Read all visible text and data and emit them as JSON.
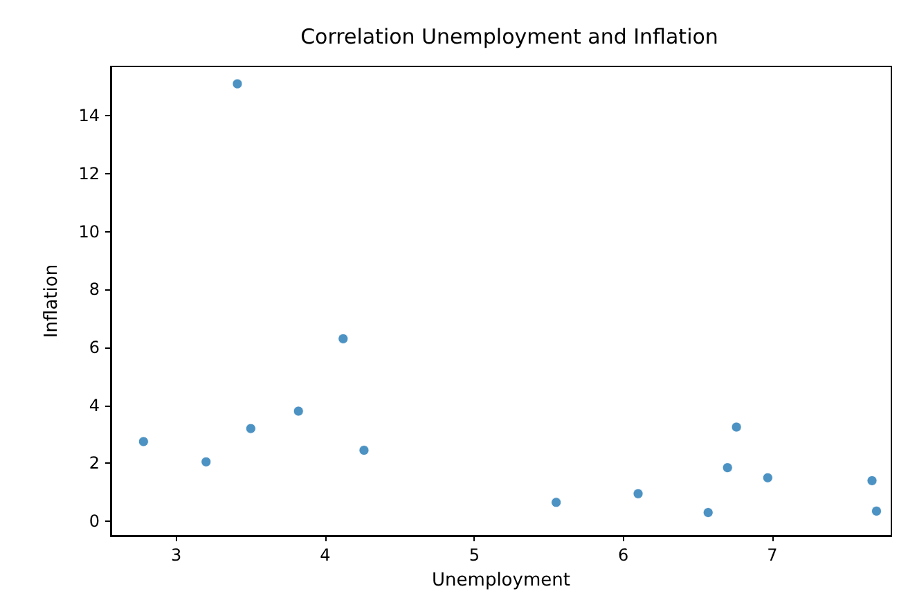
{
  "chart_data": {
    "type": "scatter",
    "title": "Correlation Unemployment and Inflation",
    "xlabel": "Unemployment",
    "ylabel": "Inflation",
    "x": [
      2.78,
      3.2,
      3.41,
      3.5,
      3.82,
      4.12,
      4.26,
      5.55,
      6.1,
      6.57,
      6.7,
      6.76,
      6.97,
      7.67,
      7.7
    ],
    "series": [
      {
        "color": "#1f77b4",
        "values": [
          2.75,
          2.05,
          15.1,
          3.2,
          3.8,
          6.3,
          2.45,
          0.65,
          0.95,
          0.3,
          1.85,
          3.25,
          1.5,
          1.4,
          0.35
        ]
      }
    ],
    "xlim": [
      2.56,
      7.8
    ],
    "xticks": [
      3,
      4,
      5,
      6,
      7
    ],
    "ylim": [
      -0.5,
      15.7
    ],
    "yticks": [
      0,
      2,
      4,
      6,
      8,
      10,
      12,
      14
    ],
    "grid": false,
    "marker": "circle"
  }
}
